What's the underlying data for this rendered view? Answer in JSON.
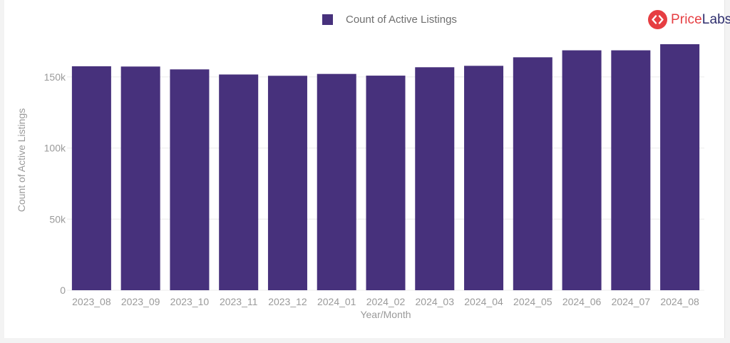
{
  "brand": {
    "name_part1": "Price",
    "name_part2": "Labs",
    "icon": "pricelabs-logo-icon"
  },
  "colors": {
    "bar": "#47317c",
    "grid": "#ececec",
    "axis_text": "#9a9a9a",
    "brand_red": "#e63e42",
    "brand_navy": "#2e2e6e"
  },
  "chart_data": {
    "type": "bar",
    "title": "",
    "xlabel": "Year/Month",
    "ylabel": "Count of Active Listings",
    "legend": {
      "position": "top-center",
      "entries": [
        "Count of Active Listings"
      ]
    },
    "grid": true,
    "ylim": [
      0,
      175000
    ],
    "yticks": [
      {
        "value": 0,
        "label": "0"
      },
      {
        "value": 50000,
        "label": "50k"
      },
      {
        "value": 100000,
        "label": "100k"
      },
      {
        "value": 150000,
        "label": "150k"
      }
    ],
    "categories": [
      "2023_08",
      "2023_09",
      "2023_10",
      "2023_11",
      "2023_12",
      "2024_01",
      "2024_02",
      "2024_03",
      "2024_04",
      "2024_05",
      "2024_06",
      "2024_07",
      "2024_08"
    ],
    "series": [
      {
        "name": "Count of Active Listings",
        "values": [
          157500,
          157300,
          155300,
          151700,
          150800,
          152100,
          150900,
          156800,
          157800,
          163800,
          168700,
          168700,
          173000
        ]
      }
    ]
  }
}
